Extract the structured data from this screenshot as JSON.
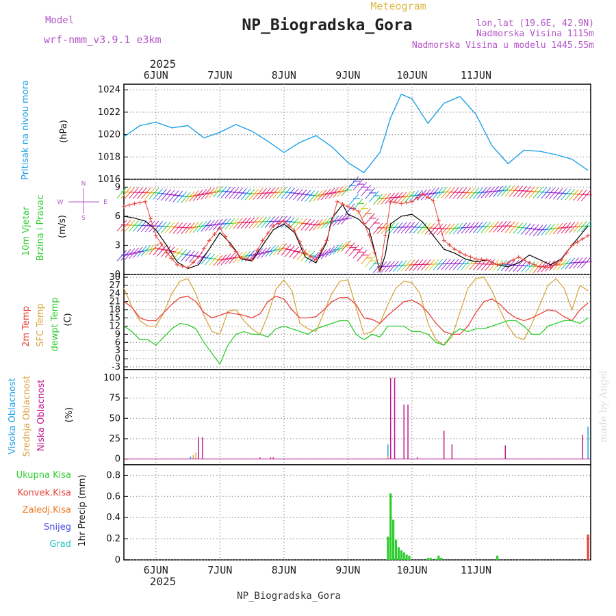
{
  "header": {
    "subtitle": "Meteogram",
    "title": "NP_Biogradska_Gora",
    "model_label": "Model",
    "model_value": "wrf-nmm_v3.9.1 e3km",
    "lonlat": "lon,lat (19.6E, 42.9N)",
    "elev": "Nadmorska Visina 1115m",
    "elev_model": "Nadmorska Visina u modelu 1445.55m"
  },
  "footer": {
    "station": "NP_Biogradska_Gora",
    "watermark": "made by Angel"
  },
  "colors": {
    "pressure": "#1ea0e6",
    "temp2m": "#e8423a",
    "sfc": "#d9a441",
    "dew": "#2ecc2e",
    "high": "#1ea0e6",
    "mid": "#d9a441",
    "low": "#c0188c",
    "precip": "#2ecc2e",
    "conv": "#e8423a",
    "frz": "#f07820",
    "snow": "#4a4ae6",
    "hail": "#22c0c0",
    "model": "#b455c8",
    "grid": "#9a9a9a"
  },
  "chart_data": {
    "type": "meteogram",
    "year": "2025",
    "days": [
      "6JUN",
      "7JUN",
      "8JUN",
      "9JUN",
      "10JUN",
      "11JUN"
    ],
    "pressure": {
      "ylabel_name": "Pritisak na nivou mora",
      "unit": "(hPa)",
      "ticks": [
        "1016",
        "1018",
        "1020",
        "1022",
        "1024"
      ],
      "ylim": [
        1016,
        1024.5
      ],
      "x": [
        0,
        6,
        12,
        18,
        24,
        30,
        36,
        42,
        48,
        54,
        60,
        66,
        72,
        78,
        84,
        90,
        96,
        100,
        104,
        108,
        114,
        120,
        126,
        132,
        138,
        144,
        150,
        156,
        162,
        168,
        174
      ],
      "values": [
        1019.8,
        1020.8,
        1021.1,
        1020.6,
        1020.8,
        1019.7,
        1020.2,
        1020.9,
        1020.3,
        1019.4,
        1018.4,
        1019.3,
        1019.9,
        1018.9,
        1017.5,
        1016.6,
        1018.4,
        1021.5,
        1023.6,
        1023.2,
        1021.0,
        1022.8,
        1023.4,
        1021.8,
        1019.0,
        1017.4,
        1018.6,
        1018.5,
        1018.2,
        1017.8,
        1016.8
      ]
    },
    "wind": {
      "ylabel": [
        "10m Vjetar",
        "Brzina i Pravac"
      ],
      "unit": "(m/s)",
      "compass": [
        "N",
        "S",
        "W",
        "E"
      ],
      "ticks": [
        "0",
        "3",
        "6",
        "9"
      ],
      "ylim": [
        0,
        9.8
      ],
      "speed_x": [
        0,
        4,
        8,
        12,
        16,
        20,
        24,
        28,
        32,
        36,
        40,
        44,
        48,
        52,
        56,
        60,
        64,
        68,
        72,
        76,
        78,
        80,
        82,
        84,
        88,
        92,
        96,
        98,
        100,
        104,
        108,
        112,
        116,
        120,
        124,
        128,
        132,
        136,
        140,
        144,
        148,
        152,
        156,
        160,
        164,
        168,
        174
      ],
      "speed": [
        6.0,
        5.8,
        5.5,
        4.6,
        3.0,
        1.3,
        0.6,
        1.0,
        2.6,
        4.3,
        3.2,
        1.6,
        1.4,
        3.0,
        4.6,
        5.2,
        4.3,
        1.8,
        1.2,
        3.3,
        5.8,
        6.5,
        7.2,
        6.2,
        5.7,
        4.6,
        0.3,
        2.0,
        5.2,
        6.0,
        6.2,
        5.4,
        4.0,
        2.6,
        2.2,
        1.6,
        1.3,
        1.5,
        1.0,
        0.8,
        1.2,
        2.0,
        1.5,
        1.0,
        1.6,
        3.0,
        5.0
      ],
      "gust_x": [
        0,
        4,
        8,
        12,
        16,
        20,
        24,
        28,
        32,
        36,
        40,
        44,
        48,
        52,
        56,
        60,
        64,
        68,
        72,
        76,
        80,
        84,
        88,
        92,
        96,
        100,
        104,
        108,
        112,
        116,
        120,
        124,
        128,
        132,
        136,
        140,
        144,
        148,
        152,
        156,
        160,
        164,
        168,
        174
      ],
      "gust": [
        7.0,
        7.3,
        7.5,
        4.0,
        2.3,
        1.0,
        0.7,
        1.8,
        3.5,
        4.8,
        3.0,
        1.7,
        1.5,
        3.5,
        5.0,
        5.5,
        4.5,
        2.2,
        1.5,
        3.5,
        7.5,
        7.0,
        6.5,
        4.0,
        0.5,
        7.5,
        7.3,
        7.5,
        8.3,
        7.6,
        3.5,
        2.6,
        2.0,
        1.6,
        1.5,
        1.0,
        1.2,
        1.8,
        1.2,
        0.8,
        0.7,
        1.5,
        3.0,
        4.0
      ],
      "levels": [
        {
          "name": "upper",
          "x": [
            0,
            12,
            24,
            36,
            48,
            60,
            72,
            84,
            87,
            96,
            108,
            120,
            132,
            144,
            156,
            168,
            174
          ],
          "values": [
            8.5,
            8.4,
            8.0,
            8.6,
            8.3,
            8.5,
            8.1,
            8.7,
            9.6,
            7.8,
            8.1,
            8.5,
            8.4,
            8.7,
            8.5,
            8.3,
            8.2
          ]
        },
        {
          "name": "middle",
          "x": [
            0,
            12,
            24,
            36,
            48,
            60,
            72,
            84,
            87,
            96,
            108,
            120,
            132,
            144,
            156,
            168,
            174
          ],
          "values": [
            5.1,
            5.0,
            4.8,
            5.2,
            5.4,
            5.5,
            5.1,
            5.8,
            7.8,
            4.8,
            4.9,
            4.7,
            4.9,
            5.0,
            4.6,
            4.9,
            5.0
          ]
        },
        {
          "name": "lower",
          "x": [
            0,
            12,
            24,
            36,
            48,
            60,
            72,
            84,
            88,
            96,
            108,
            120,
            132,
            144,
            156,
            168,
            174
          ],
          "values": [
            2.0,
            2.7,
            2.0,
            1.5,
            2.0,
            2.7,
            1.8,
            3.0,
            2.4,
            0.8,
            1.0,
            1.1,
            1.1,
            1.0,
            0.8,
            1.2,
            1.3
          ]
        }
      ]
    },
    "temperature": {
      "ylabel": [
        "2m Temp",
        "SFC Temp",
        "dewpt Temp"
      ],
      "unit": "(C)",
      "ticks": [
        "-3",
        "0",
        "3",
        "6",
        "9",
        "12",
        "15",
        "18",
        "21",
        "24",
        "27",
        "30"
      ],
      "ylim": [
        -4,
        31
      ],
      "x": [
        0,
        3,
        6,
        9,
        12,
        15,
        18,
        21,
        24,
        27,
        30,
        33,
        36,
        39,
        42,
        45,
        48,
        51,
        54,
        57,
        60,
        63,
        66,
        69,
        72,
        75,
        78,
        81,
        84,
        87,
        90,
        93,
        96,
        99,
        102,
        105,
        108,
        111,
        114,
        117,
        120,
        123,
        126,
        129,
        132,
        135,
        138,
        141,
        144,
        147,
        150,
        153,
        156,
        159,
        162,
        165,
        168,
        171,
        174
      ],
      "t2m": [
        21,
        19,
        15,
        14,
        14,
        17,
        20,
        22.5,
        23,
        21,
        17,
        15,
        16,
        17,
        16.5,
        16,
        15,
        16.5,
        21,
        23,
        22,
        18,
        15,
        15,
        15.5,
        18,
        21,
        22.5,
        22.5,
        20,
        15,
        14.5,
        13,
        16,
        18.5,
        21,
        21.5,
        20,
        17,
        13,
        10,
        9,
        9,
        12,
        17,
        21,
        22,
        20,
        17,
        15,
        14,
        15,
        16.5,
        18,
        17.5,
        15.5,
        14,
        18,
        20.5
      ],
      "sfc": [
        26,
        19,
        14,
        12,
        12,
        17,
        24,
        28.5,
        29.5,
        24,
        16,
        10,
        9,
        17.5,
        18,
        14,
        11,
        9,
        16,
        25.5,
        29,
        25,
        13,
        11,
        10,
        17,
        24,
        28.5,
        29,
        19,
        9,
        10,
        13,
        20,
        26,
        28.5,
        28,
        24,
        13,
        7,
        5,
        8,
        17,
        26,
        29.5,
        30,
        25,
        18,
        12,
        8,
        7,
        13,
        20,
        27,
        29.5,
        26,
        18,
        27,
        25
      ],
      "dew": [
        12,
        10,
        7,
        7,
        5,
        8,
        11,
        13,
        12.5,
        11,
        6,
        2,
        -2,
        5,
        9,
        10,
        9,
        9,
        8,
        11,
        12,
        11,
        10,
        9,
        11,
        12,
        13,
        14,
        14,
        9,
        7,
        9,
        8,
        12,
        12,
        12,
        10,
        10,
        9,
        6,
        5,
        9,
        11,
        10,
        11,
        11,
        12,
        13,
        14,
        14,
        12,
        9,
        9,
        12,
        13,
        14,
        14,
        13,
        15
      ]
    },
    "clouds": {
      "ylabel": [
        "Visoka Oblacnost",
        "Srednja Oblacnost",
        "Niska Oblacnost"
      ],
      "unit": "(%)",
      "ticks": [
        "0",
        "25",
        "50",
        "75",
        "100"
      ],
      "ylim": [
        -7,
        110
      ],
      "series": [
        {
          "name": "high",
          "bars": [
            [
              25,
              3
            ],
            [
              26,
              2
            ],
            [
              99,
              18
            ],
            [
              174,
              40
            ]
          ]
        },
        {
          "name": "mid",
          "bars": [
            [
              26,
              5
            ],
            [
              27,
              8
            ],
            [
              99,
              4
            ]
          ]
        },
        {
          "name": "low",
          "bars": [
            [
              28,
              27
            ],
            [
              29.5,
              27
            ],
            [
              51,
              2
            ],
            [
              55,
              2
            ],
            [
              56,
              2
            ],
            [
              100,
              100
            ],
            [
              101.5,
              100
            ],
            [
              105,
              67
            ],
            [
              106.5,
              67
            ],
            [
              110,
              2
            ],
            [
              120,
              35
            ],
            [
              123,
              18
            ],
            [
              143,
              17
            ],
            [
              172,
              30
            ]
          ]
        }
      ]
    },
    "precip": {
      "ylabel_lines": [
        "Ukupna Kisa",
        "Konvek.Kisa",
        "Zaledj.Kisa",
        "Snijeg",
        "Grad"
      ],
      "axis_label": "1hr Precip (mm)",
      "ticks": [
        "0",
        "0.2",
        "0.4",
        "0.6",
        "0.8"
      ],
      "ylim": [
        0,
        0.9
      ],
      "bars_x": [
        99,
        100,
        101,
        102,
        103,
        104,
        105,
        106,
        107,
        114,
        115,
        117,
        118,
        119,
        140,
        174
      ],
      "bars_y": [
        0.22,
        0.63,
        0.38,
        0.19,
        0.12,
        0.09,
        0.07,
        0.05,
        0.04,
        0.02,
        0.02,
        0.01,
        0.04,
        0.02,
        0.04,
        0.24
      ]
    }
  }
}
